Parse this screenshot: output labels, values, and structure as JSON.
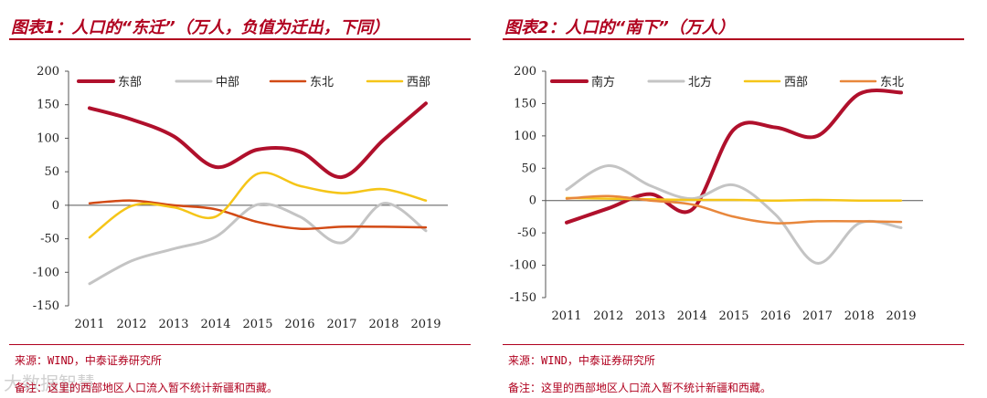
{
  "chart_data": [
    {
      "type": "line",
      "title": "图表1：人口的“东迁”（万人，负值为迁出，下同）",
      "xlabel": "",
      "ylabel": "",
      "categories": [
        "2011",
        "2012",
        "2013",
        "2014",
        "2015",
        "2016",
        "2017",
        "2018",
        "2019"
      ],
      "ylim": [
        -150,
        200
      ],
      "yticks": [
        "200",
        "150",
        "100",
        "50",
        "0",
        "-50",
        "-100",
        "-150"
      ],
      "legend_position": "top",
      "series": [
        {
          "name": "东部",
          "color": "#b0102c",
          "width": 4,
          "values": [
            145,
            128,
            103,
            57,
            83,
            80,
            42,
            98,
            152
          ]
        },
        {
          "name": "中部",
          "color": "#c4c4c4",
          "width": 3,
          "values": [
            -117,
            -83,
            -65,
            -47,
            1,
            -17,
            -56,
            3,
            -38
          ]
        },
        {
          "name": "东北",
          "color": "#d24a15",
          "width": 2.5,
          "values": [
            3,
            7,
            0,
            -6,
            -25,
            -35,
            -32,
            -32,
            -33
          ]
        },
        {
          "name": "西部",
          "color": "#f5c518",
          "width": 2.5,
          "values": [
            -48,
            -1,
            -3,
            -17,
            47,
            29,
            18,
            24,
            7
          ]
        }
      ],
      "source": "来源：WIND，中泰证券研究所",
      "note": "备注：这里的西部地区人口流入暂不统计新疆和西藏。"
    },
    {
      "type": "line",
      "title": "图表2：人口的“南下”（万人）",
      "xlabel": "",
      "ylabel": "",
      "categories": [
        "2011",
        "2012",
        "2013",
        "2014",
        "2015",
        "2016",
        "2017",
        "2018",
        "2019"
      ],
      "ylim": [
        -150,
        200
      ],
      "yticks": [
        "200",
        "150",
        "100",
        "50",
        "0",
        "-50",
        "-100",
        "-150"
      ],
      "legend_position": "top",
      "series": [
        {
          "name": "南方",
          "color": "#b0102c",
          "width": 4,
          "values": [
            -34,
            -12,
            10,
            -14,
            110,
            113,
            100,
            165,
            167
          ]
        },
        {
          "name": "北方",
          "color": "#c4c4c4",
          "width": 3,
          "values": [
            17,
            54,
            23,
            3,
            24,
            -22,
            -97,
            -35,
            -42
          ]
        },
        {
          "name": "西部",
          "color": "#f5c518",
          "width": 2.5,
          "values": [
            4,
            3,
            2,
            1,
            1,
            0,
            1,
            0,
            0
          ]
        },
        {
          "name": "东北",
          "color": "#e8873c",
          "width": 2.5,
          "values": [
            3,
            7,
            0,
            -6,
            -25,
            -35,
            -32,
            -32,
            -33
          ]
        }
      ],
      "source": "来源：WIND，中泰证券研究所",
      "note": "备注：这里的西部地区人口流入暂不统计新疆和西藏。"
    }
  ],
  "watermark": "大数据智慧"
}
